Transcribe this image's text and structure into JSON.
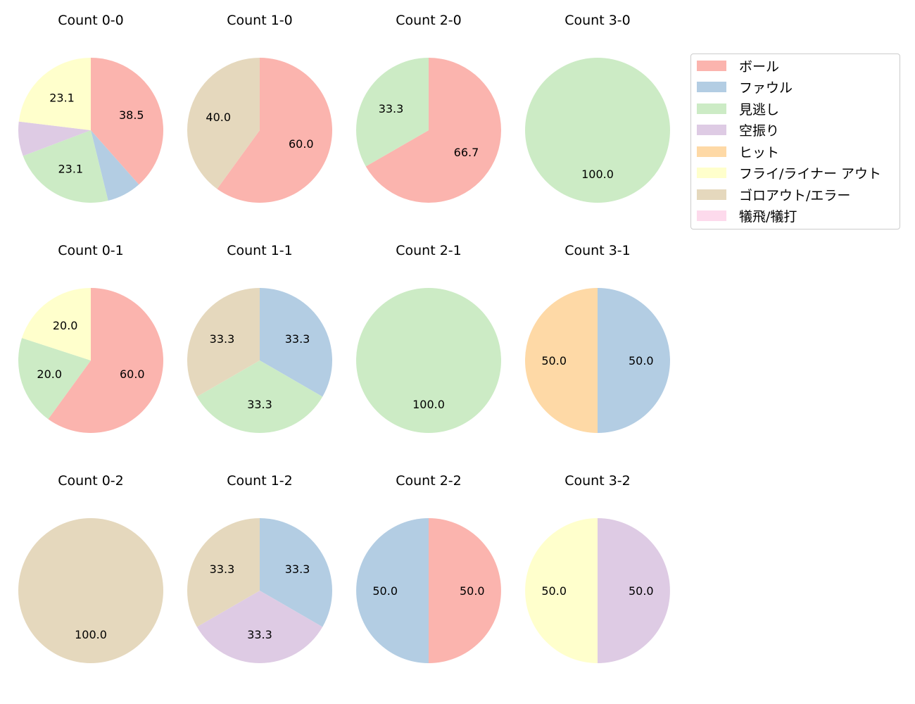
{
  "colors": {
    "ボール": "#fbb4ae",
    "ファウル": "#b3cde3",
    "見逃し": "#ccebc5",
    "空振り": "#decbe4",
    "ヒット": "#fed9a6",
    "フライ/ライナー アウト": "#ffffcc",
    "ゴロアウト/エラー": "#e5d8bd",
    "犠飛/犠打": "#fddaec"
  },
  "legend": {
    "items": [
      {
        "label": "ボール",
        "color": "#fbb4ae"
      },
      {
        "label": "ファウル",
        "color": "#b3cde3"
      },
      {
        "label": "見逃し",
        "color": "#ccebc5"
      },
      {
        "label": "空振り",
        "color": "#decbe4"
      },
      {
        "label": "ヒット",
        "color": "#fed9a6"
      },
      {
        "label": "フライ/ライナー アウト",
        "color": "#ffffcc"
      },
      {
        "label": "ゴロアウト/エラー",
        "color": "#e5d8bd"
      },
      {
        "label": "犠飛/犠打",
        "color": "#fddaec"
      }
    ]
  },
  "chart_data": [
    {
      "type": "pie",
      "title": "Count 0-0",
      "row": 0,
      "col": 0,
      "slices": [
        {
          "category": "ボール",
          "value": 38.5,
          "label": "38.5"
        },
        {
          "category": "ファウル",
          "value": 7.7,
          "label": ""
        },
        {
          "category": "見逃し",
          "value": 23.1,
          "label": "23.1"
        },
        {
          "category": "空振り",
          "value": 7.7,
          "label": ""
        },
        {
          "category": "フライ/ライナー アウト",
          "value": 23.1,
          "label": "23.1"
        }
      ]
    },
    {
      "type": "pie",
      "title": "Count 1-0",
      "row": 0,
      "col": 1,
      "slices": [
        {
          "category": "ボール",
          "value": 60.0,
          "label": "60.0"
        },
        {
          "category": "ゴロアウト/エラー",
          "value": 40.0,
          "label": "40.0"
        }
      ]
    },
    {
      "type": "pie",
      "title": "Count 2-0",
      "row": 0,
      "col": 2,
      "slices": [
        {
          "category": "ボール",
          "value": 66.7,
          "label": "66.7"
        },
        {
          "category": "見逃し",
          "value": 33.3,
          "label": "33.3"
        }
      ]
    },
    {
      "type": "pie",
      "title": "Count 3-0",
      "row": 0,
      "col": 3,
      "slices": [
        {
          "category": "見逃し",
          "value": 100.0,
          "label": "100.0"
        }
      ]
    },
    {
      "type": "pie",
      "title": "Count 0-1",
      "row": 1,
      "col": 0,
      "slices": [
        {
          "category": "ボール",
          "value": 60.0,
          "label": "60.0"
        },
        {
          "category": "見逃し",
          "value": 20.0,
          "label": "20.0"
        },
        {
          "category": "フライ/ライナー アウト",
          "value": 20.0,
          "label": "20.0"
        }
      ]
    },
    {
      "type": "pie",
      "title": "Count 1-1",
      "row": 1,
      "col": 1,
      "slices": [
        {
          "category": "ファウル",
          "value": 33.3,
          "label": "33.3"
        },
        {
          "category": "見逃し",
          "value": 33.3,
          "label": "33.3"
        },
        {
          "category": "ゴロアウト/エラー",
          "value": 33.3,
          "label": "33.3"
        }
      ]
    },
    {
      "type": "pie",
      "title": "Count 2-1",
      "row": 1,
      "col": 2,
      "slices": [
        {
          "category": "見逃し",
          "value": 100.0,
          "label": "100.0"
        }
      ]
    },
    {
      "type": "pie",
      "title": "Count 3-1",
      "row": 1,
      "col": 3,
      "slices": [
        {
          "category": "ファウル",
          "value": 50.0,
          "label": "50.0"
        },
        {
          "category": "ヒット",
          "value": 50.0,
          "label": "50.0"
        }
      ]
    },
    {
      "type": "pie",
      "title": "Count 0-2",
      "row": 2,
      "col": 0,
      "slices": [
        {
          "category": "ゴロアウト/エラー",
          "value": 100.0,
          "label": "100.0"
        }
      ]
    },
    {
      "type": "pie",
      "title": "Count 1-2",
      "row": 2,
      "col": 1,
      "slices": [
        {
          "category": "ファウル",
          "value": 33.3,
          "label": "33.3"
        },
        {
          "category": "空振り",
          "value": 33.3,
          "label": "33.3"
        },
        {
          "category": "ゴロアウト/エラー",
          "value": 33.3,
          "label": "33.3"
        }
      ]
    },
    {
      "type": "pie",
      "title": "Count 2-2",
      "row": 2,
      "col": 2,
      "slices": [
        {
          "category": "ボール",
          "value": 50.0,
          "label": "50.0"
        },
        {
          "category": "ファウル",
          "value": 50.0,
          "label": "50.0"
        }
      ]
    },
    {
      "type": "pie",
      "title": "Count 3-2",
      "row": 2,
      "col": 3,
      "slices": [
        {
          "category": "空振り",
          "value": 50.0,
          "label": "50.0"
        },
        {
          "category": "フライ/ライナー アウト",
          "value": 50.0,
          "label": "50.0"
        }
      ]
    }
  ]
}
